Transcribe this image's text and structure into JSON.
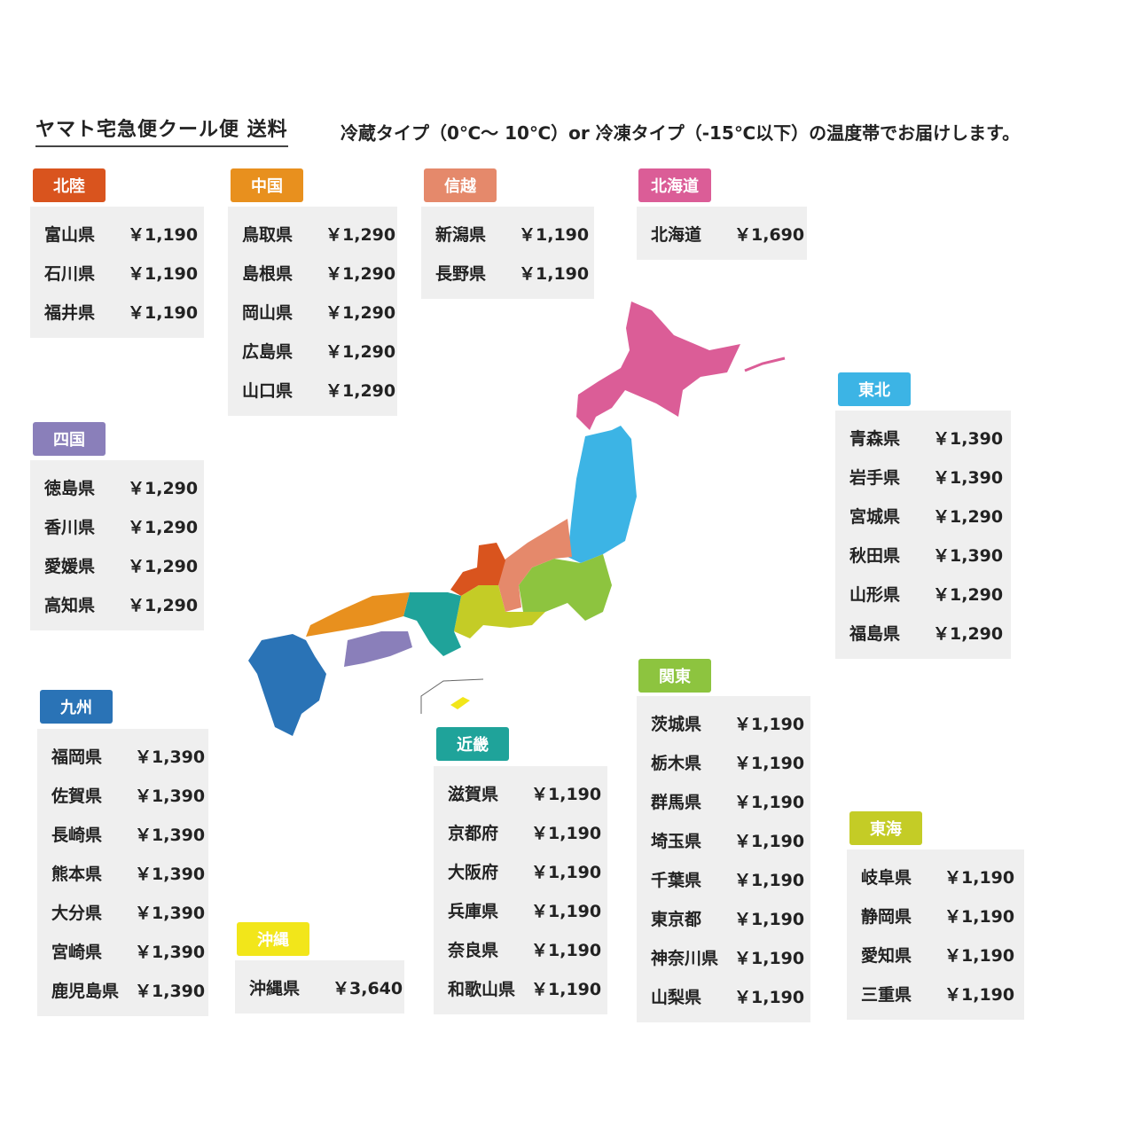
{
  "header": {
    "title": "ヤマト宅急便クール便 送料",
    "subtitle": "冷蔵タイプ（0℃～ 10℃）or 冷凍タイプ（-15℃以下）の温度帯でお届けします。"
  },
  "regions": [
    {
      "name": "北陸",
      "color": "#d9541e",
      "rows": [
        [
          "富山県",
          "￥1,190"
        ],
        [
          "石川県",
          "￥1,190"
        ],
        [
          "福井県",
          "￥1,190"
        ]
      ]
    },
    {
      "name": "中国",
      "color": "#e8901e",
      "rows": [
        [
          "鳥取県",
          "￥1,290"
        ],
        [
          "島根県",
          "￥1,290"
        ],
        [
          "岡山県",
          "￥1,290"
        ],
        [
          "広島県",
          "￥1,290"
        ],
        [
          "山口県",
          "￥1,290"
        ]
      ]
    },
    {
      "name": "信越",
      "color": "#e5896b",
      "rows": [
        [
          "新潟県",
          "￥1,190"
        ],
        [
          "長野県",
          "￥1,190"
        ]
      ]
    },
    {
      "name": "北海道",
      "color": "#db5d97",
      "rows": [
        [
          "北海道",
          "￥1,690"
        ]
      ]
    },
    {
      "name": "東北",
      "color": "#3cb4e5",
      "rows": [
        [
          "青森県",
          "￥1,390"
        ],
        [
          "岩手県",
          "￥1,390"
        ],
        [
          "宮城県",
          "￥1,290"
        ],
        [
          "秋田県",
          "￥1,390"
        ],
        [
          "山形県",
          "￥1,290"
        ],
        [
          "福島県",
          "￥1,290"
        ]
      ]
    },
    {
      "name": "四国",
      "color": "#8a7fba",
      "rows": [
        [
          "徳島県",
          "￥1,290"
        ],
        [
          "香川県",
          "￥1,290"
        ],
        [
          "愛媛県",
          "￥1,290"
        ],
        [
          "高知県",
          "￥1,290"
        ]
      ]
    },
    {
      "name": "九州",
      "color": "#2a73b6",
      "rows": [
        [
          "福岡県",
          "￥1,390"
        ],
        [
          "佐賀県",
          "￥1,390"
        ],
        [
          "長崎県",
          "￥1,390"
        ],
        [
          "熊本県",
          "￥1,390"
        ],
        [
          "大分県",
          "￥1,390"
        ],
        [
          "宮崎県",
          "￥1,390"
        ],
        [
          "鹿児島県",
          "￥1,390"
        ]
      ]
    },
    {
      "name": "沖縄",
      "color": "#f2e61a",
      "rows": [
        [
          "沖縄県",
          "￥3,640"
        ]
      ]
    },
    {
      "name": "近畿",
      "color": "#1fa39a",
      "rows": [
        [
          "滋賀県",
          "￥1,190"
        ],
        [
          "京都府",
          "￥1,190"
        ],
        [
          "大阪府",
          "￥1,190"
        ],
        [
          "兵庫県",
          "￥1,190"
        ],
        [
          "奈良県",
          "￥1,190"
        ],
        [
          "和歌山県",
          "￥1,190"
        ]
      ]
    },
    {
      "name": "関東",
      "color": "#8dc43f",
      "rows": [
        [
          "茨城県",
          "￥1,190"
        ],
        [
          "栃木県",
          "￥1,190"
        ],
        [
          "群馬県",
          "￥1,190"
        ],
        [
          "埼玉県",
          "￥1,190"
        ],
        [
          "千葉県",
          "￥1,190"
        ],
        [
          "東京都",
          "￥1,190"
        ],
        [
          "神奈川県",
          "￥1,190"
        ],
        [
          "山梨県",
          "￥1,190"
        ]
      ]
    },
    {
      "name": "東海",
      "color": "#c4cc26",
      "rows": [
        [
          "岐阜県",
          "￥1,190"
        ],
        [
          "静岡県",
          "￥1,190"
        ],
        [
          "愛知県",
          "￥1,190"
        ],
        [
          "三重県",
          "￥1,190"
        ]
      ]
    }
  ]
}
